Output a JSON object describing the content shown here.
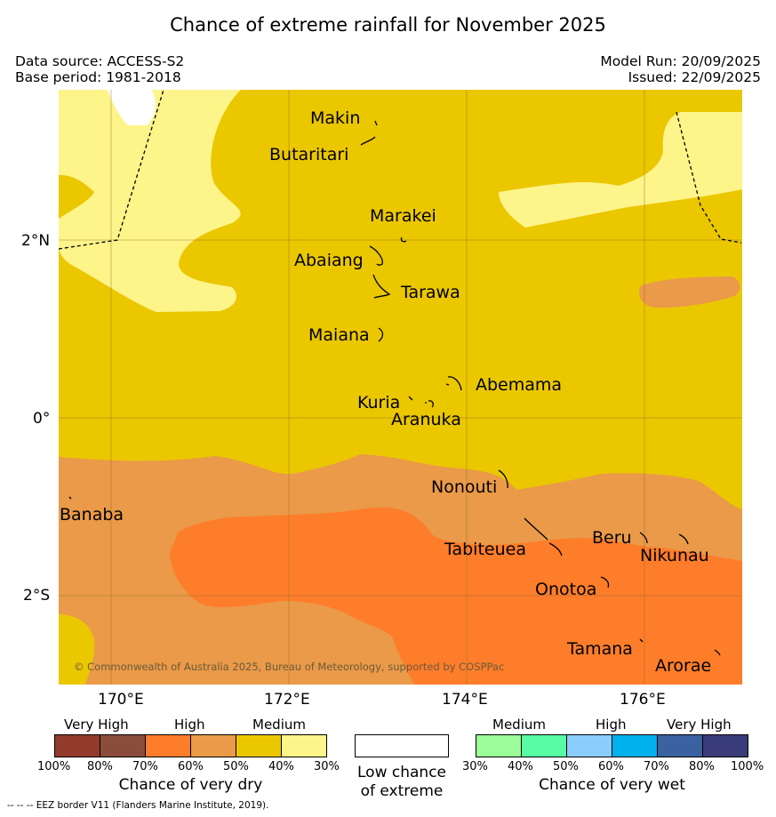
{
  "title": "Chance of extreme rainfall for November 2025",
  "meta": {
    "source": "Data source: ACCESS-S2",
    "base": "Base period: 1981-2018",
    "run": "Model Run: 20/09/2025",
    "issued": "Issued: 22/09/2025"
  },
  "axes": {
    "lon_ticks": [
      "170°E",
      "172°E",
      "174°E",
      "176°E"
    ],
    "lat_ticks": [
      "2°N",
      "0°",
      "2°S"
    ]
  },
  "places": [
    "Makin",
    "Butaritari",
    "Marakei",
    "Abaiang",
    "Tarawa",
    "Maiana",
    "Abemama",
    "Kuria",
    "Aranuka",
    "Nonouti",
    "Banaba",
    "Tabiteuea",
    "Beru",
    "Nikunau",
    "Onotoa",
    "Tamana",
    "Arorae"
  ],
  "copyright": "© Commonwealth of Australia 2025, Bureau of Meteorology, supported by COSPPac",
  "colors": {
    "dry_very_high_100": "#933b2b",
    "dry_very_high_80": "#8b4d3b",
    "dry_high_70": "#fe7d2a",
    "dry_high_60": "#ea9a48",
    "dry_medium_50": "#ebc700",
    "dry_medium_40": "#fdf48a",
    "wet_medium_30": "#9afd98",
    "wet_medium_40": "#57fda4",
    "wet_high_50": "#8bcdfd",
    "wet_high_60": "#00b1ec",
    "wet_very_high_70": "#3a62a0",
    "wet_very_high_80": "#393c78",
    "low_chance": "#ffffff"
  },
  "legend": {
    "dry": {
      "levels": [
        "Very High",
        "High",
        "Medium"
      ],
      "percents": [
        "100%",
        "80%",
        "70%",
        "60%",
        "50%",
        "40%",
        "30%"
      ],
      "caption": "Chance of very dry"
    },
    "low": {
      "line1": "Low chance",
      "line2": "of extreme"
    },
    "wet": {
      "levels": [
        "Medium",
        "High",
        "Very High"
      ],
      "percents": [
        "30%",
        "40%",
        "50%",
        "60%",
        "70%",
        "80%",
        "100%"
      ],
      "caption": "Chance of very wet"
    }
  },
  "footnote": "--  --  -- EEZ border V11 (Flanders Marine Institute, 2019)."
}
